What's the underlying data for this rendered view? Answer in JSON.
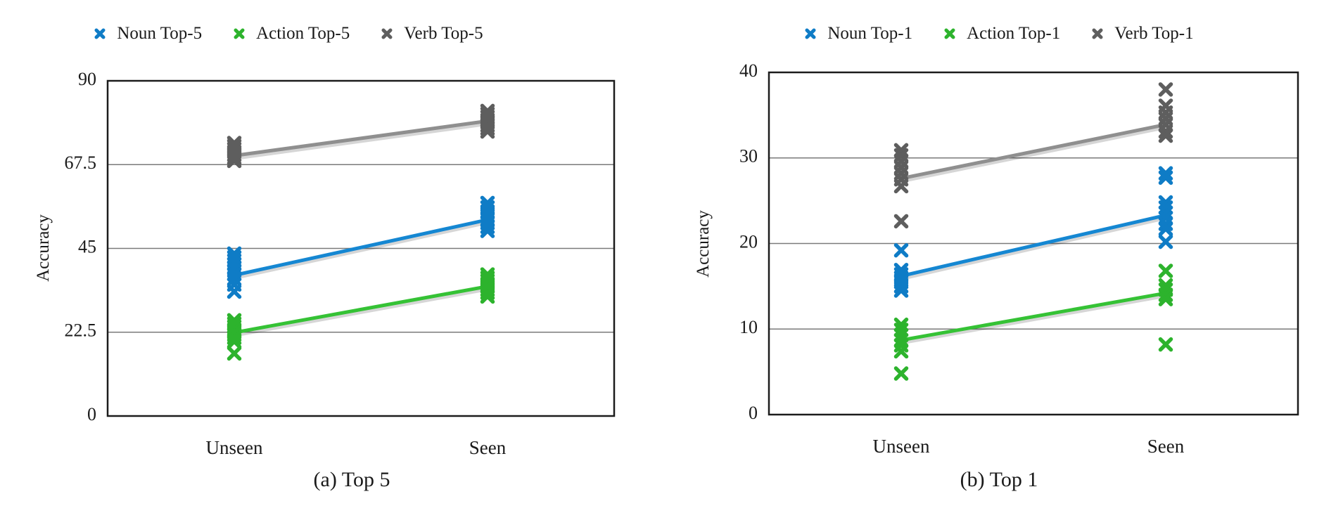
{
  "figure": {
    "ylabel": "Accuracy",
    "x_categories": [
      "Unseen",
      "Seen"
    ]
  },
  "chart_data": [
    {
      "type": "scatter",
      "caption": "(a) Top 5",
      "ylabel": "Accuracy",
      "xlabel": "",
      "categories": [
        "Unseen",
        "Seen"
      ],
      "ylim": [
        0,
        90
      ],
      "yticks": [
        0,
        22.5,
        45,
        67.5,
        90
      ],
      "ytick_labels": [
        "0",
        "22.5",
        "45",
        "67.5",
        "90"
      ],
      "grid": "horizontal-interior",
      "legend_position": "top",
      "marker": "x",
      "series": [
        {
          "name": "Verb Top-5",
          "color": "#5e5e5e",
          "line_color": "#8f8f8f",
          "points": {
            "Unseen": [
              73.3,
              72.5,
              71.7,
              70.9,
              70.1,
              69.3,
              68.5
            ],
            "Seen": [
              81.9,
              81.1,
              80.3,
              79.5,
              78.8,
              78.0,
              77.2,
              76.4
            ]
          },
          "trend_line": {
            "Unseen": 69.9,
            "Seen": 79.2
          }
        },
        {
          "name": "Noun Top-5",
          "color": "#0f7cc6",
          "line_color": "#1587d2",
          "points": {
            "Unseen": [
              43.6,
              42.6,
              41.7,
              40.8,
              39.9,
              39.0,
              38.1,
              36.8,
              35.3,
              33.4
            ],
            "Seen": [
              57.2,
              56.0,
              54.9,
              53.8,
              52.8,
              51.8,
              50.8,
              49.7
            ]
          },
          "trend_line": {
            "Unseen": 37.8,
            "Seen": 52.7
          }
        },
        {
          "name": "Action Top-5",
          "color": "#2db32d",
          "line_color": "#35c235",
          "points": {
            "Unseen": [
              25.7,
              24.8,
              24.0,
              23.2,
              22.5,
              21.8,
              21.0,
              20.0,
              16.8
            ],
            "Seen": [
              38.0,
              37.1,
              36.3,
              35.5,
              34.7,
              33.9,
              33.1,
              32.1
            ]
          },
          "trend_line": {
            "Unseen": 22.4,
            "Seen": 34.8
          }
        }
      ]
    },
    {
      "type": "scatter",
      "caption": "(b) Top 1",
      "ylabel": "Accuracy",
      "xlabel": "",
      "categories": [
        "Unseen",
        "Seen"
      ],
      "ylim": [
        0,
        40
      ],
      "yticks": [
        0,
        10,
        20,
        30,
        40
      ],
      "ytick_labels": [
        "0",
        "10",
        "20",
        "30",
        "40"
      ],
      "grid": "horizontal-interior",
      "legend_position": "top",
      "marker": "x",
      "series": [
        {
          "name": "Verb Top-1",
          "color": "#5e5e5e",
          "line_color": "#8f8f8f",
          "points": {
            "Unseen": [
              30.9,
              30.3,
              29.6,
              28.9,
              28.2,
              27.5,
              26.7,
              22.6
            ],
            "Seen": [
              38.0,
              36.1,
              35.3,
              34.6,
              33.9,
              33.1,
              32.6
            ]
          },
          "trend_line": {
            "Unseen": 27.6,
            "Seen": 33.9
          }
        },
        {
          "name": "Noun Top-1",
          "color": "#0f7cc6",
          "line_color": "#1587d2",
          "points": {
            "Unseen": [
              19.2,
              16.9,
              16.4,
              16.0,
              15.5,
              15.0,
              14.5
            ],
            "Seen": [
              28.2,
              27.7,
              24.8,
              24.2,
              23.6,
              23.0,
              22.3,
              21.7,
              20.2
            ]
          },
          "trend_line": {
            "Unseen": 16.2,
            "Seen": 23.3
          }
        },
        {
          "name": "Action Top-1",
          "color": "#2db32d",
          "line_color": "#35c235",
          "points": {
            "Unseen": [
              10.5,
              9.9,
              9.3,
              8.7,
              8.1,
              7.4,
              4.8
            ],
            "Seen": [
              16.8,
              15.1,
              14.6,
              14.0,
              13.5,
              8.2
            ]
          },
          "trend_line": {
            "Unseen": 8.7,
            "Seen": 14.2
          }
        }
      ]
    }
  ],
  "legends": [
    {
      "items": [
        {
          "label": "Noun Top-5",
          "color": "#0f7cc6"
        },
        {
          "label": "Action Top-5",
          "color": "#2db32d"
        },
        {
          "label": "Verb Top-5",
          "color": "#5e5e5e"
        }
      ]
    },
    {
      "items": [
        {
          "label": "Noun Top-1",
          "color": "#0f7cc6"
        },
        {
          "label": "Action Top-1",
          "color": "#2db32d"
        },
        {
          "label": "Verb Top-1",
          "color": "#5e5e5e"
        }
      ]
    }
  ]
}
